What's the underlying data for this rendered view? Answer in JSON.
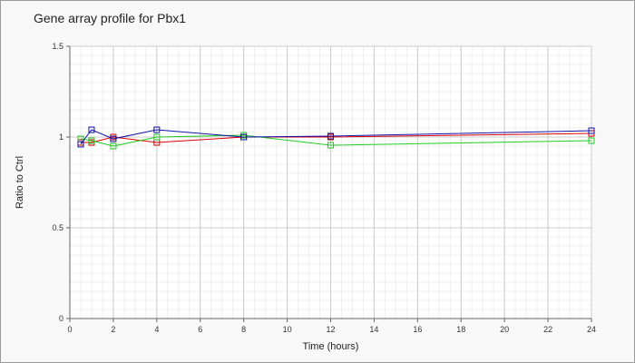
{
  "chart_data": {
    "type": "line",
    "title": "Gene array profile for Pbx1",
    "xlabel": "Time (hours)",
    "ylabel": "Ratio to Ctrl",
    "xlim": [
      0,
      24
    ],
    "ylim": [
      0,
      1.5
    ],
    "x_ticks": [
      "0",
      "2",
      "4",
      "6",
      "8",
      "10",
      "12",
      "14",
      "16",
      "18",
      "20",
      "22",
      "24"
    ],
    "y_ticks": [
      "0",
      "0.5",
      "1",
      "1.5"
    ],
    "grid": true,
    "series": [
      {
        "color": "#dd0000",
        "marker": "square",
        "points": [
          [
            0.5,
            0.97
          ],
          [
            1,
            0.97
          ],
          [
            2,
            1.0
          ],
          [
            4,
            0.97
          ],
          [
            8,
            1.0
          ],
          [
            12,
            1.0
          ],
          [
            24,
            1.02
          ]
        ]
      },
      {
        "color": "#22cc22",
        "marker": "square",
        "points": [
          [
            0.5,
            0.99
          ],
          [
            1,
            0.98
          ],
          [
            2,
            0.95
          ],
          [
            4,
            1.0
          ],
          [
            8,
            1.01
          ],
          [
            12,
            0.955
          ],
          [
            24,
            0.98
          ]
        ]
      },
      {
        "color": "#1111aa",
        "marker": "square",
        "points": [
          [
            0.5,
            0.96
          ],
          [
            1,
            1.04
          ],
          [
            2,
            0.99
          ],
          [
            4,
            1.04
          ],
          [
            8,
            1.0
          ],
          [
            12,
            1.005
          ],
          [
            24,
            1.035
          ]
        ]
      }
    ]
  }
}
